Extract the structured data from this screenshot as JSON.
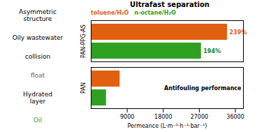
{
  "chart_data": {
    "type": "bar",
    "orientation": "horizontal",
    "title": "Ultrafast separation",
    "xlabel": "Permeance (L·m⁻²·h⁻¹·bar⁻¹)",
    "categories": [
      "PAN-PPG-AS",
      "PAN"
    ],
    "series": [
      {
        "name": "toluene/H₂O",
        "color": "#e06010",
        "values": [
          34000,
          7200
        ]
      },
      {
        "name": "n-octane/H₂O",
        "color": "#30a020",
        "values": [
          27500,
          3800
        ]
      }
    ],
    "xlim": [
      0,
      38000
    ],
    "xticks": [
      9000,
      18000,
      27000,
      36000
    ],
    "grid": false,
    "annotations": [
      {
        "text": "239%",
        "color": "#e06010"
      },
      {
        "text": "194%",
        "color": "#208020"
      },
      {
        "text": "Antifouling performance"
      },
      {
        "text": "Asymmetric\nstructure"
      },
      {
        "text": "Oily  wastewater"
      },
      {
        "text": "collision"
      },
      {
        "text": "float",
        "color": "#666666"
      },
      {
        "text": "Hydrated\nlayer"
      },
      {
        "text": "Oil",
        "color": "#40a030"
      }
    ]
  }
}
